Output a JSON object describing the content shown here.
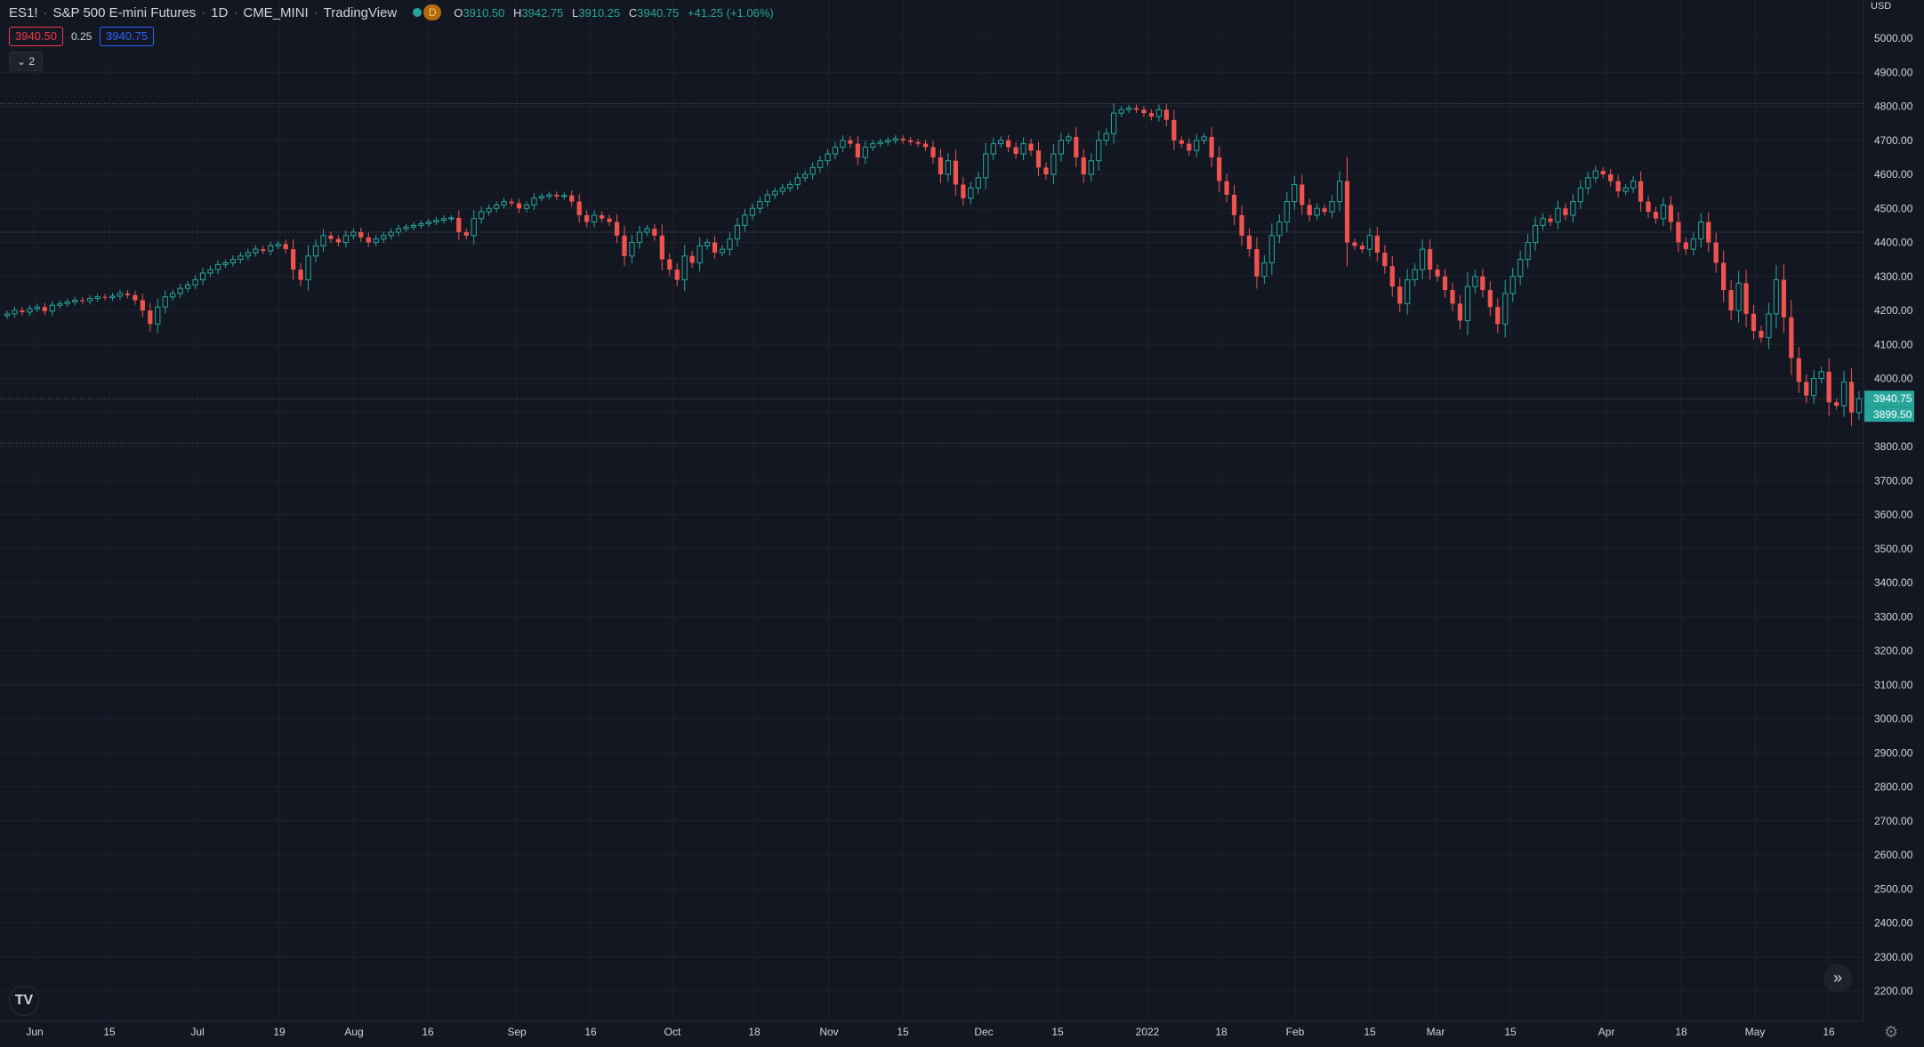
{
  "header": {
    "symbol": "ES1!",
    "name": "S&P 500 E-mini Futures",
    "interval": "1D",
    "exchange": "CME_MINI",
    "source": "TradingView",
    "badge": "D",
    "ohlc": {
      "o_label": "O",
      "o": "3910.50",
      "h_label": "H",
      "h": "3942.75",
      "l_label": "L",
      "l": "3910.25",
      "c_label": "C",
      "c": "3940.75",
      "chg": "+41.25 (+1.06%)"
    }
  },
  "quote": {
    "bid": "3940.50",
    "spread": "0.25",
    "ask": "3940.75"
  },
  "indicators_toggle": "2",
  "currency": "USD",
  "colors": {
    "bg": "#131722",
    "grid": "#1e222d",
    "up": "#26a69a",
    "down": "#ef5350",
    "axis_text": "#d1d4dc",
    "last_price_bg": "#26a69a"
  },
  "chart_data": {
    "type": "candlestick",
    "yaxis": {
      "min": 2100,
      "max": 5100,
      "ticks": [
        2200,
        2300,
        2400,
        2500,
        2600,
        2700,
        2800,
        2900,
        3000,
        3100,
        3200,
        3300,
        3400,
        3500,
        3600,
        3700,
        3800,
        3900,
        4000,
        4100,
        4200,
        4300,
        4400,
        4500,
        4600,
        4700,
        4800,
        4900,
        5000
      ]
    },
    "xaxis_labels": [
      "Jun",
      "15",
      "Jul",
      "19",
      "Aug",
      "16",
      "Sep",
      "16",
      "Oct",
      "18",
      "Nov",
      "15",
      "Dec",
      "15",
      "2022",
      "18",
      "Feb",
      "15",
      "Mar",
      "15",
      "Apr",
      "18",
      "May",
      "16"
    ],
    "last_price": "3940.75",
    "countdown_price": "3899.50",
    "hlines": [
      4808,
      4430,
      3940.75,
      3810
    ],
    "closes": [
      4190,
      4200,
      4195,
      4205,
      4210,
      4198,
      4215,
      4220,
      4225,
      4230,
      4228,
      4235,
      4240,
      4238,
      4242,
      4250,
      4245,
      4230,
      4200,
      4160,
      4210,
      4240,
      4250,
      4265,
      4275,
      4290,
      4310,
      4320,
      4335,
      4340,
      4350,
      4360,
      4370,
      4380,
      4375,
      4390,
      4395,
      4380,
      4320,
      4290,
      4360,
      4390,
      4420,
      4410,
      4400,
      4420,
      4430,
      4415,
      4400,
      4410,
      4420,
      4430,
      4440,
      4445,
      4450,
      4455,
      4460,
      4465,
      4470,
      4472,
      4430,
      4420,
      4470,
      4490,
      4500,
      4510,
      4520,
      4515,
      4500,
      4510,
      4530,
      4535,
      4540,
      4535,
      4538,
      4520,
      4480,
      4460,
      4480,
      4470,
      4460,
      4420,
      4360,
      4400,
      4430,
      4440,
      4420,
      4350,
      4320,
      4290,
      4360,
      4340,
      4390,
      4400,
      4370,
      4380,
      4410,
      4450,
      4480,
      4500,
      4520,
      4540,
      4550,
      4560,
      4570,
      4590,
      4600,
      4620,
      4640,
      4660,
      4680,
      4700,
      4690,
      4650,
      4680,
      4690,
      4695,
      4700,
      4705,
      4700,
      4695,
      4690,
      4680,
      4650,
      4600,
      4640,
      4570,
      4530,
      4560,
      4590,
      4660,
      4690,
      4700,
      4680,
      4660,
      4690,
      4670,
      4620,
      4600,
      4660,
      4700,
      4710,
      4650,
      4600,
      4640,
      4700,
      4720,
      4780,
      4790,
      4795,
      4790,
      4780,
      4770,
      4790,
      4760,
      4700,
      4690,
      4670,
      4700,
      4710,
      4650,
      4580,
      4540,
      4480,
      4420,
      4380,
      4300,
      4340,
      4420,
      4460,
      4520,
      4570,
      4510,
      4480,
      4500,
      4490,
      4520,
      4580,
      4400,
      4390,
      4380,
      4420,
      4370,
      4330,
      4270,
      4220,
      4290,
      4320,
      4380,
      4320,
      4300,
      4260,
      4220,
      4170,
      4270,
      4300,
      4260,
      4210,
      4160,
      4250,
      4300,
      4350,
      4400,
      4450,
      4470,
      4460,
      4500,
      4480,
      4520,
      4560,
      4590,
      4610,
      4600,
      4580,
      4550,
      4560,
      4580,
      4520,
      4490,
      4470,
      4510,
      4460,
      4400,
      4380,
      4410,
      4460,
      4400,
      4340,
      4260,
      4200,
      4280,
      4190,
      4140,
      4120,
      4190,
      4290,
      4180,
      4060,
      3990,
      3950,
      4000,
      4020,
      3930,
      3920,
      3990,
      3900,
      3940.75
    ]
  }
}
